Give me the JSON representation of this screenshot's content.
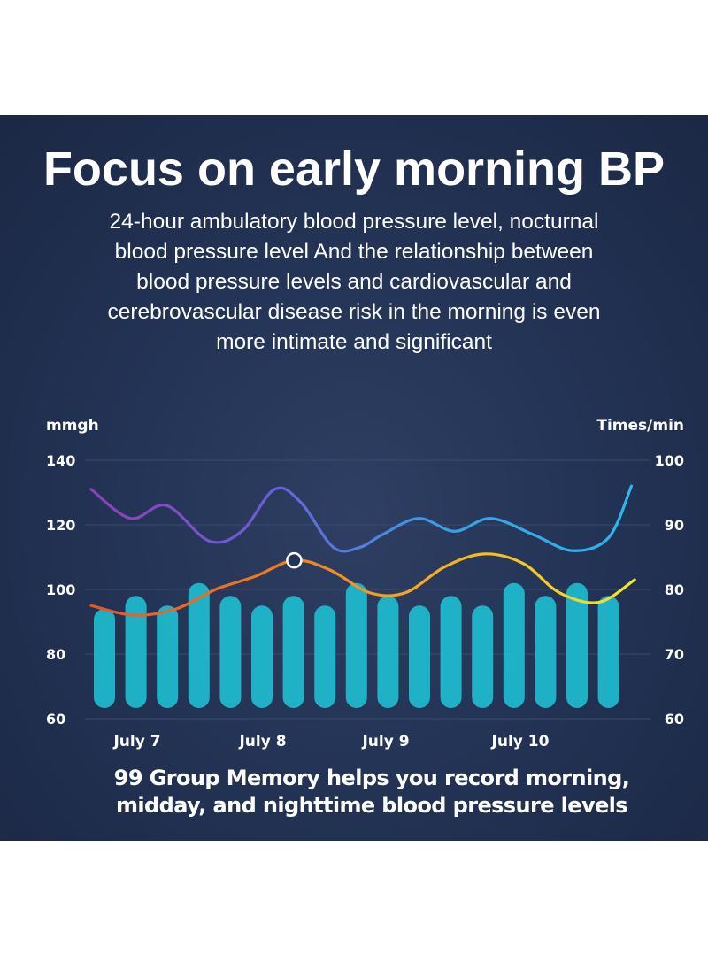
{
  "headline": "Focus on early morning BP",
  "subtitle_lines": [
    "24-hour ambulatory blood pressure level, nocturnal",
    "blood pressure level And the relationship between",
    "blood pressure levels and cardiovascular and",
    "cerebrovascular disease risk in the morning is even",
    "more intimate and significant"
  ],
  "caption_lines": [
    "99 Group Memory helps you record morning,",
    "midday, and nighttime blood pressure levels"
  ],
  "colors": {
    "panel_bg": "#243456",
    "bar": "#1fb8cc",
    "grid": "#3b4b6e",
    "systolic_gradient": [
      "#8e3fb8",
      "#6a5fd6",
      "#3aa0e6",
      "#2ab8f0"
    ],
    "heart_gradient": [
      "#e8552a",
      "#f07a20",
      "#f5b41f",
      "#f2e82a"
    ]
  },
  "chart_data": {
    "type": "bar",
    "ylabel": "mmgh",
    "y2label": "Times/min",
    "ylim": [
      60,
      140
    ],
    "y2lim": [
      60,
      100
    ],
    "yticks": [
      140,
      120,
      100,
      80,
      60
    ],
    "y2ticks": [
      100,
      90,
      80,
      70,
      60
    ],
    "x_labels": [
      "July 7",
      "July 8",
      "July 9",
      "July 10"
    ],
    "grid": true,
    "bars": {
      "name": "",
      "values": [
        94,
        98,
        95,
        102,
        98,
        95,
        98,
        95,
        102,
        98,
        95,
        98,
        95,
        102,
        98,
        102,
        98
      ]
    },
    "series": [
      {
        "name": "",
        "axis": "left",
        "x": [
          0,
          1.2,
          2.3,
          3.6,
          4.6,
          5.6,
          6.4,
          7.4,
          8.2,
          8.9,
          10.0,
          11.1,
          12.2,
          13.5,
          14.7,
          15.8,
          16.5
        ],
        "values": [
          131,
          122,
          126,
          115,
          118,
          131,
          127,
          113,
          113,
          117,
          122,
          118,
          122,
          117,
          112,
          116,
          132
        ]
      },
      {
        "name": "",
        "axis": "left",
        "x": [
          0,
          1.3,
          2.6,
          3.8,
          5.0,
          6.2,
          7.3,
          8.5,
          9.6,
          10.8,
          12.0,
          13.2,
          14.3,
          15.5,
          16.6
        ],
        "values": [
          95,
          92,
          94,
          100,
          104,
          109,
          106,
          99,
          99,
          107,
          111,
          108,
          99,
          96,
          103
        ]
      }
    ],
    "highlight": {
      "series": 1,
      "x": 6.2,
      "value": 109
    }
  }
}
